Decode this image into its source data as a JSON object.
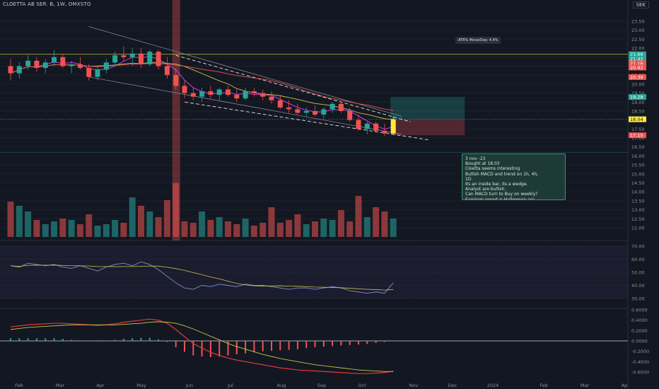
{
  "header": {
    "title": "CLOETTA AB SER. B, 1W, OMXSTO",
    "currency": "SEK"
  },
  "annotation": {
    "atr": "ATR% Move/Day: 4.4%",
    "note": "3 nov -23\nBought at 18.03\nCloetta seems interesting\nBullish MACD and trend on 1h, 4h,\n1D\nIts an inside bar, its a wedge.\nAnalyst are bullish.\nCan MACD turn to Buy on weekly?\nEarnings report is Halloween are\naround the corner and we are going\ninto x-mas."
  },
  "colors": {
    "up": "#26a69a",
    "down": "#ef5350",
    "bg": "#131722",
    "highlight": "#ffeb3b"
  },
  "chart_data": [
    {
      "type": "candlestick",
      "x_ticks": [
        "Feb",
        "Mar",
        "Apr",
        "May",
        "Jun",
        "Jul",
        "Aug",
        "Sep",
        "Oct",
        "Nov",
        "Dec",
        "2024",
        "Feb",
        "Mar",
        "Ap"
      ],
      "ylim": [
        11.5,
        23.75
      ],
      "y_ticks": [
        "23.50",
        "23.00",
        "22.50",
        "22.00",
        "21.50",
        "21.00",
        "20.50",
        "20.00",
        "19.50",
        "19.00",
        "18.50",
        "18.00",
        "17.50",
        "17.00",
        "16.50",
        "16.00",
        "15.50",
        "15.00",
        "14.50",
        "14.00",
        "13.50",
        "13.00",
        "12.50",
        "12.00"
      ],
      "price_labels": [
        {
          "value": 21.66,
          "text": "21.66",
          "color": "#26a69a"
        },
        {
          "value": 21.42,
          "text": "21.42",
          "color": "#26a69a"
        },
        {
          "value": 21.16,
          "text": "21.16",
          "color": "#ef5350"
        },
        {
          "value": 20.92,
          "text": "20.92",
          "color": "#ef5350"
        },
        {
          "value": 20.39,
          "text": "20.39",
          "color": "#ef5350"
        },
        {
          "value": 19.28,
          "text": "19.28",
          "color": "#26a69a"
        },
        {
          "value": 18.04,
          "text": "18.04",
          "color": "#ffeb3b"
        },
        {
          "value": 17.15,
          "text": "17.15",
          "color": "#ef5350"
        }
      ],
      "ohlc": [
        [
          21.0,
          21.4,
          20.2,
          20.6
        ],
        [
          20.6,
          21.2,
          20.3,
          21.0
        ],
        [
          21.0,
          21.6,
          20.8,
          21.3
        ],
        [
          21.3,
          21.5,
          20.7,
          20.9
        ],
        [
          20.9,
          21.4,
          20.6,
          21.2
        ],
        [
          21.2,
          21.9,
          21.0,
          21.5
        ],
        [
          21.5,
          21.7,
          20.9,
          21.0
        ],
        [
          21.0,
          21.3,
          20.6,
          21.1
        ],
        [
          21.1,
          21.5,
          20.8,
          20.9
        ],
        [
          20.9,
          21.1,
          20.2,
          20.4
        ],
        [
          20.4,
          21.0,
          20.2,
          20.8
        ],
        [
          20.8,
          21.4,
          20.6,
          21.2
        ],
        [
          21.2,
          21.8,
          21.0,
          21.6
        ],
        [
          21.6,
          22.1,
          21.3,
          21.5
        ],
        [
          21.5,
          22.0,
          21.0,
          21.7
        ],
        [
          21.7,
          22.0,
          20.9,
          21.1
        ],
        [
          21.1,
          21.9,
          21.0,
          21.8
        ],
        [
          21.8,
          21.9,
          20.8,
          21.0
        ],
        [
          21.0,
          21.5,
          20.3,
          20.5
        ],
        [
          20.5,
          20.9,
          19.7,
          19.9
        ],
        [
          19.9,
          20.2,
          19.2,
          19.5
        ],
        [
          19.5,
          19.8,
          19.1,
          19.3
        ],
        [
          19.3,
          19.8,
          19.0,
          19.6
        ],
        [
          19.6,
          19.9,
          19.2,
          19.4
        ],
        [
          19.4,
          19.8,
          19.1,
          19.7
        ],
        [
          19.7,
          19.9,
          19.3,
          19.4
        ],
        [
          19.4,
          19.7,
          19.0,
          19.2
        ],
        [
          19.2,
          19.8,
          19.1,
          19.6
        ],
        [
          19.6,
          19.8,
          19.3,
          19.5
        ],
        [
          19.5,
          19.7,
          19.1,
          19.3
        ],
        [
          19.3,
          19.6,
          18.9,
          19.1
        ],
        [
          19.1,
          19.4,
          18.6,
          18.7
        ],
        [
          18.7,
          19.1,
          18.4,
          18.6
        ],
        [
          18.6,
          18.9,
          18.3,
          18.4
        ],
        [
          18.4,
          18.7,
          18.2,
          18.5
        ],
        [
          18.5,
          18.8,
          18.2,
          18.3
        ],
        [
          18.3,
          18.7,
          18.1,
          18.6
        ],
        [
          18.6,
          19.0,
          18.4,
          18.9
        ],
        [
          18.9,
          19.0,
          18.4,
          18.5
        ],
        [
          18.5,
          18.7,
          17.9,
          18.0
        ],
        [
          18.0,
          18.3,
          17.4,
          17.5
        ],
        [
          17.5,
          17.9,
          17.2,
          17.8
        ],
        [
          17.8,
          17.9,
          17.3,
          17.4
        ],
        [
          17.4,
          17.8,
          17.1,
          17.25
        ],
        [
          17.25,
          18.2,
          17.2,
          18.04
        ]
      ],
      "volume": [
        25,
        22,
        18,
        12,
        9,
        11,
        13,
        12,
        9,
        16,
        8,
        9,
        12,
        10,
        28,
        22,
        18,
        14,
        26,
        38,
        11,
        10,
        18,
        12,
        14,
        11,
        9,
        13,
        8,
        10,
        21,
        10,
        12,
        16,
        9,
        11,
        13,
        12,
        19,
        11,
        29,
        14,
        21,
        18,
        13
      ]
    },
    {
      "type": "line",
      "name": "RSI",
      "y_ticks": [
        "70.00",
        "60.00",
        "50.00",
        "40.00",
        "30.00"
      ],
      "ylim": [
        28,
        72
      ],
      "values": [
        55,
        54,
        57,
        56,
        55,
        56,
        54,
        53,
        55,
        53,
        51,
        54,
        56,
        57,
        55,
        58,
        56,
        52,
        47,
        42,
        38,
        37,
        40,
        39,
        41,
        40,
        39,
        41,
        40,
        40,
        39,
        38,
        37,
        38,
        38,
        37,
        38,
        39,
        38,
        36,
        35,
        34,
        35,
        34,
        42
      ]
    },
    {
      "type": "bar",
      "name": "MACD",
      "y_ticks": [
        "0.6000",
        "0.4000",
        "0.2000",
        "0.0000",
        "-0.2000",
        "-0.4000",
        "-0.6000"
      ],
      "ylim": [
        -0.7,
        0.7
      ],
      "macd": [
        0.27,
        0.29,
        0.31,
        0.32,
        0.33,
        0.34,
        0.34,
        0.33,
        0.32,
        0.31,
        0.3,
        0.31,
        0.33,
        0.36,
        0.38,
        0.4,
        0.42,
        0.4,
        0.34,
        0.22,
        0.08,
        -0.05,
        -0.14,
        -0.22,
        -0.28,
        -0.33,
        -0.37,
        -0.4,
        -0.43,
        -0.46,
        -0.49,
        -0.52,
        -0.54,
        -0.56,
        -0.57,
        -0.58,
        -0.59,
        -0.6,
        -0.61,
        -0.62,
        -0.63,
        -0.63,
        -0.62,
        -0.61,
        -0.58
      ],
      "signal": [
        0.22,
        0.24,
        0.26,
        0.27,
        0.28,
        0.29,
        0.3,
        0.31,
        0.31,
        0.31,
        0.31,
        0.31,
        0.31,
        0.32,
        0.33,
        0.34,
        0.36,
        0.37,
        0.36,
        0.34,
        0.29,
        0.23,
        0.16,
        0.09,
        0.02,
        -0.05,
        -0.11,
        -0.16,
        -0.21,
        -0.26,
        -0.3,
        -0.34,
        -0.37,
        -0.4,
        -0.43,
        -0.46,
        -0.48,
        -0.5,
        -0.52,
        -0.54,
        -0.56,
        -0.57,
        -0.58,
        -0.59,
        -0.59
      ]
    }
  ]
}
